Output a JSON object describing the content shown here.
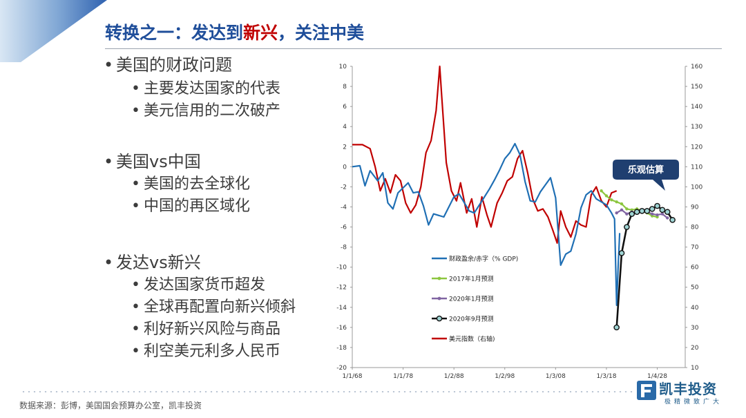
{
  "title": {
    "part1": "转换之一：发达到",
    "highlight": "新兴",
    "part2": "，关注中美"
  },
  "bullets": [
    {
      "level": 1,
      "text": "美国的财政问题"
    },
    {
      "level": 2,
      "text": "主要发达国家的代表"
    },
    {
      "level": 2,
      "text": "美元信用的二次破产"
    },
    {
      "level": 1,
      "text": "美国vs中国"
    },
    {
      "level": 2,
      "text": "美国的去全球化"
    },
    {
      "level": 2,
      "text": "中国的再区域化"
    },
    {
      "level": 1,
      "text": "发达vs新兴"
    },
    {
      "level": 2,
      "text": "发达国家货币超发"
    },
    {
      "level": 2,
      "text": "全球再配置向新兴倾斜"
    },
    {
      "level": 2,
      "text": "利好新兴风险与商品"
    },
    {
      "level": 2,
      "text": "利空美元利多人民币"
    }
  ],
  "bullet_glyph": "•",
  "footer": "数据来源：彭博，美国国会预算办公室，凯丰投资",
  "logo": {
    "name": "凯丰投资",
    "tagline": "极精微致广大"
  },
  "colors": {
    "title": "#1f4e9a",
    "highlight": "#c00000",
    "deficit": "#1f6fb4",
    "dollar": "#c00000",
    "f2017": "#8cc63f",
    "f2020jan": "#8064a2",
    "f2020sep": "#111111"
  },
  "chart_data": {
    "type": "line",
    "x_tick_labels": [
      "1/1/68",
      "1/1/78",
      "1/2/88",
      "1/2/98",
      "1/3/08",
      "1/3/18",
      "1/4/28"
    ],
    "y_left": {
      "min": -20,
      "max": 10,
      "ticks": [
        10,
        8,
        6,
        4,
        2,
        0,
        -2,
        -4,
        -6,
        -8,
        -10,
        -12,
        -14,
        -16,
        -18,
        -20
      ]
    },
    "y_right": {
      "min": 10,
      "max": 160,
      "ticks": [
        160,
        150,
        140,
        130,
        120,
        110,
        100,
        90,
        80,
        70,
        60,
        50,
        40,
        30,
        20,
        10
      ]
    },
    "callout": "乐观估算",
    "series": [
      {
        "name": "财政盈余/赤字（% GDP)",
        "axis": "left",
        "color": "#1f6fb4",
        "marker": "none",
        "points": [
          [
            1968,
            0
          ],
          [
            1969.5,
            0.1
          ],
          [
            1970.5,
            -1.9
          ],
          [
            1971.5,
            -0.4
          ],
          [
            1973,
            -1.4
          ],
          [
            1974,
            -0.6
          ],
          [
            1975,
            -3.6
          ],
          [
            1976,
            -4.2
          ],
          [
            1977,
            -2.6
          ],
          [
            1979,
            -1.6
          ],
          [
            1980,
            -2.6
          ],
          [
            1981,
            -2.5
          ],
          [
            1982,
            -3.9
          ],
          [
            1983,
            -5.8
          ],
          [
            1984,
            -4.7
          ],
          [
            1986,
            -5
          ],
          [
            1988,
            -3
          ],
          [
            1989,
            -2.7
          ],
          [
            1991,
            -4.4
          ],
          [
            1992,
            -4.6
          ],
          [
            1993,
            -3.8
          ],
          [
            1995,
            -2.2
          ],
          [
            1996,
            -1.3
          ],
          [
            1997,
            -0.3
          ],
          [
            1998,
            0.8
          ],
          [
            1999,
            1.4
          ],
          [
            2000,
            2.3
          ],
          [
            2001,
            1.2
          ],
          [
            2002,
            -1.5
          ],
          [
            2003,
            -3.4
          ],
          [
            2004,
            -3.5
          ],
          [
            2005,
            -2.5
          ],
          [
            2006,
            -1.8
          ],
          [
            2007,
            -1.1
          ],
          [
            2008,
            -3.1
          ],
          [
            2009,
            -9.8
          ],
          [
            2010,
            -8.7
          ],
          [
            2011,
            -8.4
          ],
          [
            2012,
            -6.7
          ],
          [
            2013,
            -4.1
          ],
          [
            2014,
            -2.8
          ],
          [
            2015,
            -2.4
          ],
          [
            2016,
            -3.2
          ],
          [
            2017,
            -3.5
          ],
          [
            2018,
            -3.8
          ],
          [
            2019,
            -4.6
          ],
          [
            2019.6,
            -5.2
          ],
          [
            2020.0,
            -13.8
          ],
          [
            2020.3,
            -10
          ],
          [
            2020.6,
            -6.6
          ]
        ]
      },
      {
        "name": "2017年1月预测",
        "axis": "left",
        "color": "#8cc63f",
        "marker": "dot",
        "points": [
          [
            2017,
            -2.4
          ],
          [
            2018,
            -2.9
          ],
          [
            2019,
            -3.3
          ],
          [
            2020,
            -3.5
          ],
          [
            2021,
            -3.7
          ],
          [
            2022,
            -4.2
          ],
          [
            2023,
            -4.3
          ],
          [
            2024,
            -4.2
          ],
          [
            2025,
            -4.4
          ],
          [
            2026,
            -4.6
          ],
          [
            2027,
            -4.9
          ],
          [
            2028,
            -5.0
          ]
        ]
      },
      {
        "name": "2020年1月预测",
        "axis": "left",
        "color": "#8064a2",
        "marker": "dot",
        "points": [
          [
            2020,
            -4.6
          ],
          [
            2021,
            -4.3
          ],
          [
            2022,
            -4.7
          ],
          [
            2023,
            -4.5
          ],
          [
            2024,
            -4.6
          ],
          [
            2025,
            -4.4
          ],
          [
            2026,
            -4.5
          ],
          [
            2027,
            -4.7
          ],
          [
            2028,
            -4.8
          ],
          [
            2029,
            -4.7
          ],
          [
            2030,
            -5.1
          ]
        ]
      },
      {
        "name": "2020年9月预测",
        "axis": "left",
        "color": "#111111",
        "marker": "ring",
        "points": [
          [
            2020,
            -16
          ],
          [
            2021,
            -8.6
          ],
          [
            2022,
            -6
          ],
          [
            2023,
            -4.7
          ],
          [
            2024,
            -4.5
          ],
          [
            2025,
            -4.4
          ],
          [
            2026,
            -4.4
          ],
          [
            2027,
            -4.2
          ],
          [
            2028,
            -3.9
          ],
          [
            2029,
            -4.3
          ],
          [
            2030,
            -4.5
          ],
          [
            2031,
            -5.3
          ]
        ]
      },
      {
        "name": "美元指数（右轴)",
        "axis": "right",
        "color": "#c00000",
        "marker": "none",
        "points": [
          [
            1968,
            121
          ],
          [
            1970,
            121
          ],
          [
            1971.5,
            119
          ],
          [
            1972.5,
            110
          ],
          [
            1973.5,
            98
          ],
          [
            1974.5,
            104
          ],
          [
            1975.5,
            97
          ],
          [
            1976.5,
            106
          ],
          [
            1977.5,
            103
          ],
          [
            1978.5,
            92
          ],
          [
            1979.5,
            87
          ],
          [
            1980.5,
            91
          ],
          [
            1981.5,
            100
          ],
          [
            1982.5,
            117
          ],
          [
            1983.5,
            123
          ],
          [
            1984.5,
            138
          ],
          [
            1985.2,
            160
          ],
          [
            1985.6,
            145
          ],
          [
            1986.5,
            112
          ],
          [
            1987.5,
            98
          ],
          [
            1988.5,
            93
          ],
          [
            1989.3,
            102
          ],
          [
            1990.5,
            87
          ],
          [
            1991.5,
            94
          ],
          [
            1992.5,
            80
          ],
          [
            1993.5,
            95
          ],
          [
            1994.5,
            86
          ],
          [
            1995.3,
            80
          ],
          [
            1996.5,
            92
          ],
          [
            1997.5,
            97
          ],
          [
            1998.5,
            103
          ],
          [
            1999.5,
            105
          ],
          [
            2000.5,
            114
          ],
          [
            2001.5,
            118
          ],
          [
            2002.5,
            107
          ],
          [
            2003.5,
            94
          ],
          [
            2004.5,
            88
          ],
          [
            2005.5,
            89
          ],
          [
            2006.5,
            85
          ],
          [
            2007.5,
            78
          ],
          [
            2008.3,
            72
          ],
          [
            2009,
            88
          ],
          [
            2010,
            80
          ],
          [
            2011,
            75
          ],
          [
            2012,
            83
          ],
          [
            2013,
            81
          ],
          [
            2014,
            80
          ],
          [
            2015,
            96
          ],
          [
            2016,
            100
          ],
          [
            2017,
            93
          ],
          [
            2018,
            90
          ],
          [
            2019,
            97
          ],
          [
            2020,
            98
          ]
        ]
      }
    ]
  }
}
